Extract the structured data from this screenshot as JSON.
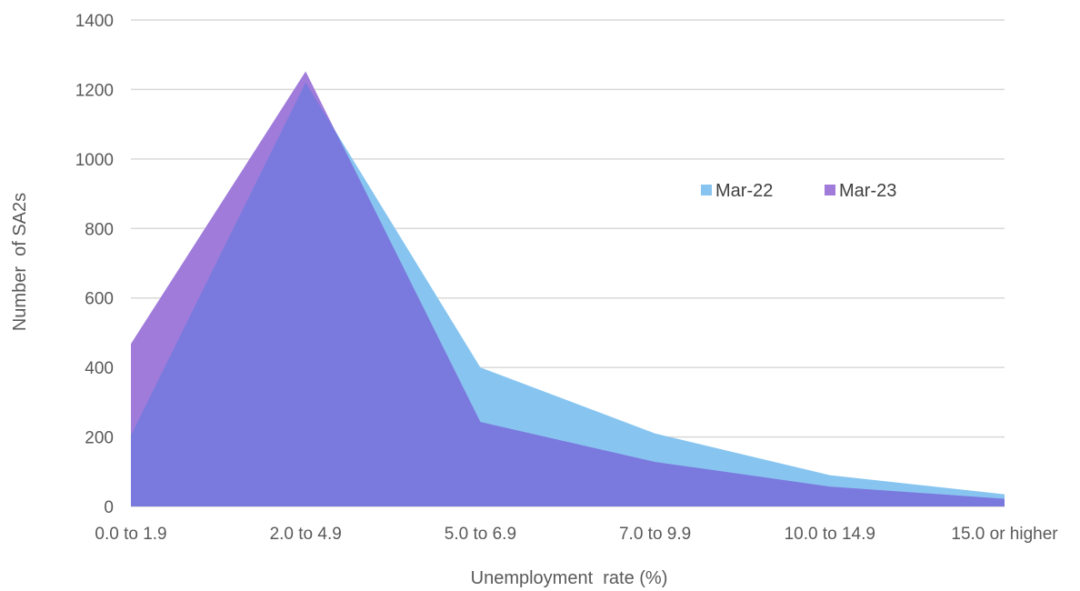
{
  "chart_data": {
    "type": "area",
    "categories": [
      "0.0 to 1.9",
      "2.0 to 4.9",
      "5.0 to 6.9",
      "7.0 to 9.9",
      "10.0 to 14.9",
      "15.0 or higher"
    ],
    "series": [
      {
        "name": "Mar-22",
        "values": [
          205,
          1220,
          400,
          210,
          90,
          35
        ],
        "color": "#87C5F0"
      },
      {
        "name": "Mar-23",
        "values": [
          468,
          1252,
          243,
          128,
          57,
          22
        ],
        "color": "#A07BDA"
      }
    ],
    "overlap_color": "#7A7ADE",
    "xlabel": "Unemployment  rate (%)",
    "ylabel": "Number  of SA2s",
    "ylim": [
      0,
      1400
    ],
    "yticks": [
      "0",
      "200",
      "400",
      "600",
      "800",
      "1000",
      "1200",
      "1400"
    ],
    "ytick_values": [
      0,
      200,
      400,
      600,
      800,
      1000,
      1200,
      1400
    ],
    "grid": true,
    "legend_position": "right-middle",
    "colors": {
      "gridline": "#D9D9D9",
      "text": "#595959"
    }
  }
}
